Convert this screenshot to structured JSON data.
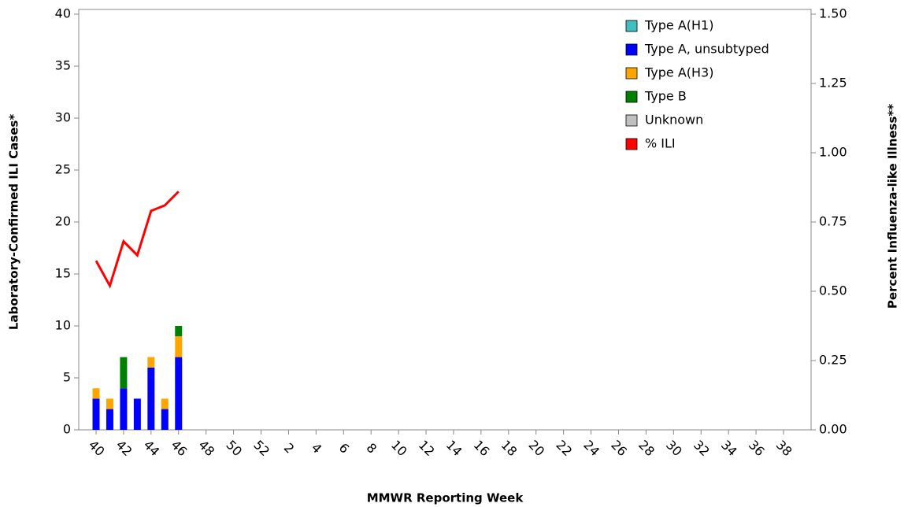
{
  "chart_data": {
    "type": "bar",
    "stacked": true,
    "x_label": "MMWR Reporting Week",
    "y_label": "Laboratory-Confirmed ILI Cases*",
    "y2_label": "Percent Influenza-like Illness**",
    "categories": [
      "40",
      null,
      "42",
      null,
      "44",
      null,
      "46",
      null,
      "48",
      null,
      "50",
      null,
      "52",
      null,
      "2",
      null,
      "4",
      null,
      "6",
      null,
      "8",
      null,
      "10",
      null,
      "12",
      null,
      "14",
      null,
      "16",
      null,
      "18",
      null,
      "20",
      null,
      "22",
      null,
      "24",
      null,
      "26",
      null,
      "28",
      null,
      "30",
      null,
      "32",
      null,
      "34",
      null,
      "36",
      null,
      "38",
      null
    ],
    "ylim": [
      0,
      40
    ],
    "yticks": [
      0,
      5,
      10,
      15,
      20,
      25,
      30,
      35,
      40
    ],
    "y2lim": [
      0,
      1.5
    ],
    "y2ticks": [
      {
        "value": 0,
        "label": "0.00"
      },
      {
        "value": 0.25,
        "label": "0.25"
      },
      {
        "value": 0.5,
        "label": "0.50"
      },
      {
        "value": 0.75,
        "label": "0.75"
      },
      {
        "value": 1,
        "label": "1.00"
      },
      {
        "value": 1.25,
        "label": "1.25"
      },
      {
        "value": 1.5,
        "label": "1.50"
      }
    ],
    "legend": "top-right",
    "series": [
      {
        "name": "Type A(H1)",
        "color": "#3fbfbf",
        "values": [
          0,
          0,
          0,
          0,
          0,
          0,
          0,
          null,
          null,
          null,
          null,
          null,
          null,
          null,
          null,
          null,
          null,
          null,
          null,
          null,
          null,
          null,
          null,
          null,
          null,
          null,
          null,
          null,
          null,
          null,
          null,
          null,
          null,
          null,
          null,
          null,
          null,
          null,
          null,
          null,
          null,
          null,
          null,
          null,
          null,
          null,
          null,
          null,
          null,
          null,
          null,
          null
        ]
      },
      {
        "name": "Type A, unsubtyped",
        "color": "#0000ff",
        "values": [
          3,
          2,
          4,
          3,
          6,
          2,
          7,
          null,
          null,
          null,
          null,
          null,
          null,
          null,
          null,
          null,
          null,
          null,
          null,
          null,
          null,
          null,
          null,
          null,
          null,
          null,
          null,
          null,
          null,
          null,
          null,
          null,
          null,
          null,
          null,
          null,
          null,
          null,
          null,
          null,
          null,
          null,
          null,
          null,
          null,
          null,
          null,
          null,
          null,
          null,
          null,
          null
        ]
      },
      {
        "name": "Type A(H3)",
        "color": "#ffa500",
        "values": [
          1,
          1,
          0,
          0,
          1,
          1,
          2,
          null,
          null,
          null,
          null,
          null,
          null,
          null,
          null,
          null,
          null,
          null,
          null,
          null,
          null,
          null,
          null,
          null,
          null,
          null,
          null,
          null,
          null,
          null,
          null,
          null,
          null,
          null,
          null,
          null,
          null,
          null,
          null,
          null,
          null,
          null,
          null,
          null,
          null,
          null,
          null,
          null,
          null,
          null,
          null,
          null
        ]
      },
      {
        "name": "Type B",
        "color": "#008000",
        "values": [
          0,
          0,
          3,
          0,
          0,
          0,
          1,
          null,
          null,
          null,
          null,
          null,
          null,
          null,
          null,
          null,
          null,
          null,
          null,
          null,
          null,
          null,
          null,
          null,
          null,
          null,
          null,
          null,
          null,
          null,
          null,
          null,
          null,
          null,
          null,
          null,
          null,
          null,
          null,
          null,
          null,
          null,
          null,
          null,
          null,
          null,
          null,
          null,
          null,
          null,
          null,
          null
        ]
      },
      {
        "name": "Unknown",
        "color": "#c0c0c0",
        "values": [
          0,
          0,
          0,
          0,
          0,
          0,
          0,
          null,
          null,
          null,
          null,
          null,
          null,
          null,
          null,
          null,
          null,
          null,
          null,
          null,
          null,
          null,
          null,
          null,
          null,
          null,
          null,
          null,
          null,
          null,
          null,
          null,
          null,
          null,
          null,
          null,
          null,
          null,
          null,
          null,
          null,
          null,
          null,
          null,
          null,
          null,
          null,
          null,
          null,
          null,
          null,
          null
        ]
      },
      {
        "name": "% ILI",
        "color": "#ff0000",
        "type": "line",
        "axis": "y2",
        "values": [
          0.61,
          0.52,
          0.68,
          0.63,
          0.79,
          0.81,
          0.86,
          null,
          null,
          null,
          null,
          null,
          null,
          null,
          null,
          null,
          null,
          null,
          null,
          null,
          null,
          null,
          null,
          null,
          null,
          null,
          null,
          null,
          null,
          null,
          null,
          null,
          null,
          null,
          null,
          null,
          null,
          null,
          null,
          null,
          null,
          null,
          null,
          null,
          null,
          null,
          null,
          null,
          null,
          null,
          null,
          null
        ]
      }
    ]
  }
}
